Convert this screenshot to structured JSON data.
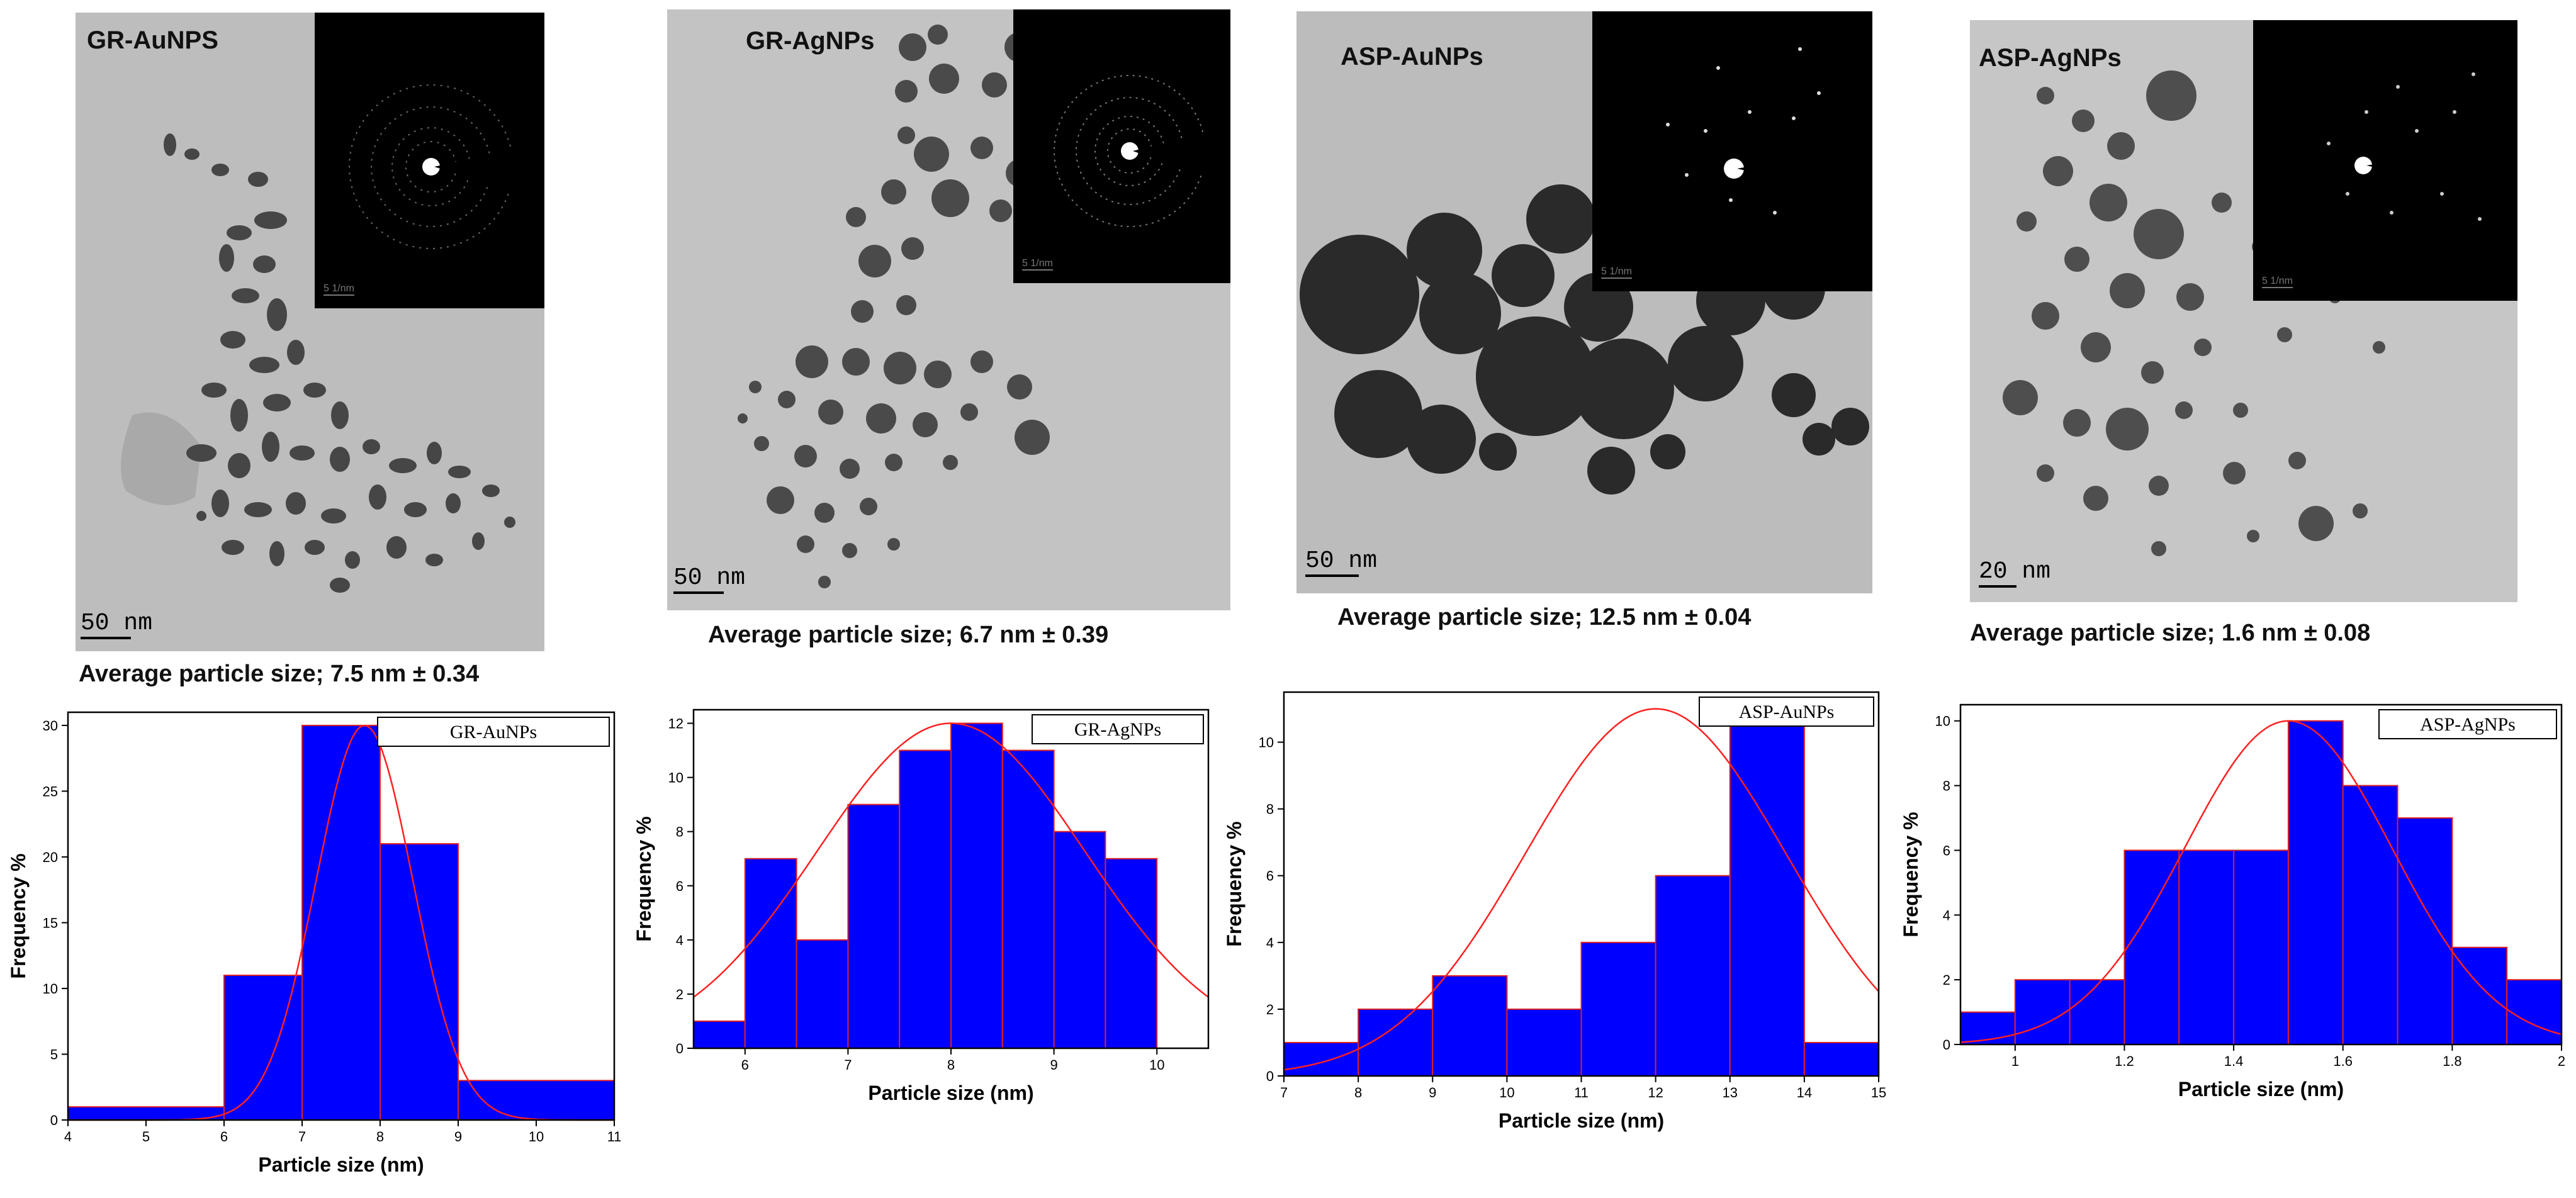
{
  "colors": {
    "bar_fill": "#0000ff",
    "bar_edge": "#e02020",
    "fit_curve": "#ff2020",
    "tem_background": "#b8b8b8",
    "particle_dark": "#3a3a3a",
    "saed_background": "#000000"
  },
  "panels": [
    {
      "tem_title": "GR-AuNPS",
      "scale_bar": "50 nm",
      "saed_scale": "5 1/nm",
      "avg_label": "Average particle size; 7.5 nm ± 0.34"
    },
    {
      "tem_title": "GR-AgNPs",
      "scale_bar": "50 nm",
      "saed_scale": "5 1/nm",
      "avg_label": "Average particle size; 6.7 nm ± 0.39"
    },
    {
      "tem_title": "ASP-AuNPs",
      "scale_bar": "50 nm",
      "saed_scale": "5 1/nm",
      "avg_label": "Average particle size; 12.5 nm ± 0.04"
    },
    {
      "tem_title": "ASP-AgNPs",
      "scale_bar": "20 nm",
      "saed_scale": "5 1/nm",
      "avg_label": "Average particle size; 1.6 nm ± 0.08"
    }
  ],
  "chart_data": [
    {
      "type": "bar",
      "legend": "GR-AuNPs",
      "legend_position": "top-right",
      "xlabel": "Particle size (nm)",
      "ylabel": "Frequency %",
      "xlim": [
        4,
        11
      ],
      "ylim": [
        0,
        31
      ],
      "xticks": [
        4,
        5,
        6,
        7,
        8,
        9,
        10,
        11
      ],
      "yticks": [
        0,
        5,
        10,
        15,
        20,
        25,
        30
      ],
      "bins": [
        [
          4,
          6,
          1
        ],
        [
          6,
          7,
          11
        ],
        [
          7,
          8,
          30
        ],
        [
          8,
          9,
          21
        ],
        [
          9,
          11,
          3
        ]
      ],
      "fit": {
        "mean": 7.8,
        "sd": 0.62,
        "peak": 30
      }
    },
    {
      "type": "bar",
      "legend": "GR-AgNPs",
      "legend_position": "top-right",
      "xlabel": "Particle size (nm)",
      "ylabel": "Frequency %",
      "xlim": [
        5.5,
        10.5
      ],
      "ylim": [
        0,
        12.5
      ],
      "xticks": [
        6,
        7,
        8,
        9,
        10
      ],
      "yticks": [
        0,
        2,
        4,
        6,
        8,
        10,
        12
      ],
      "bins": [
        [
          5.5,
          6,
          1
        ],
        [
          6,
          6.5,
          7
        ],
        [
          6.5,
          7,
          4
        ],
        [
          7,
          7.5,
          9
        ],
        [
          7.5,
          8,
          11
        ],
        [
          8,
          8.5,
          12
        ],
        [
          8.5,
          9,
          11
        ],
        [
          9,
          9.5,
          8
        ],
        [
          9.5,
          10,
          7
        ]
      ],
      "fit": {
        "mean": 8.0,
        "sd": 1.3,
        "peak": 12
      }
    },
    {
      "type": "bar",
      "legend": "ASP-AuNPs",
      "legend_position": "top-right",
      "xlabel": "Particle size (nm)",
      "ylabel": "Frequency %",
      "xlim": [
        7,
        15
      ],
      "ylim": [
        0,
        11.5
      ],
      "xticks": [
        7,
        8,
        9,
        10,
        11,
        12,
        13,
        14,
        15
      ],
      "yticks": [
        0,
        2,
        4,
        6,
        8,
        10
      ],
      "bins": [
        [
          7,
          8,
          1
        ],
        [
          8,
          9,
          2
        ],
        [
          9,
          10,
          3
        ],
        [
          10,
          11,
          2
        ],
        [
          11,
          12,
          4
        ],
        [
          12,
          13,
          6
        ],
        [
          13,
          14,
          11
        ],
        [
          14,
          15,
          1
        ]
      ],
      "fit": {
        "mean": 12.0,
        "sd": 1.75,
        "peak": 11
      }
    },
    {
      "type": "bar",
      "legend": "ASP-AgNPs",
      "legend_position": "top-right",
      "xlabel": "Particle size (nm)",
      "ylabel": "Frequency %",
      "xlim": [
        0.9,
        2.0
      ],
      "ylim": [
        0,
        10.5
      ],
      "xticks": [
        1.0,
        1.2,
        1.4,
        1.6,
        1.8,
        2.0
      ],
      "yticks": [
        0,
        2,
        4,
        6,
        8,
        10
      ],
      "bins": [
        [
          0.9,
          1.0,
          1
        ],
        [
          1.0,
          1.1,
          2
        ],
        [
          1.1,
          1.2,
          2
        ],
        [
          1.2,
          1.3,
          6
        ],
        [
          1.3,
          1.4,
          6
        ],
        [
          1.4,
          1.5,
          6
        ],
        [
          1.5,
          1.6,
          10
        ],
        [
          1.6,
          1.7,
          8
        ],
        [
          1.7,
          1.8,
          7
        ],
        [
          1.8,
          1.9,
          3
        ],
        [
          1.9,
          2.0,
          2
        ]
      ],
      "fit": {
        "mean": 1.5,
        "sd": 0.19,
        "peak": 10
      }
    }
  ]
}
